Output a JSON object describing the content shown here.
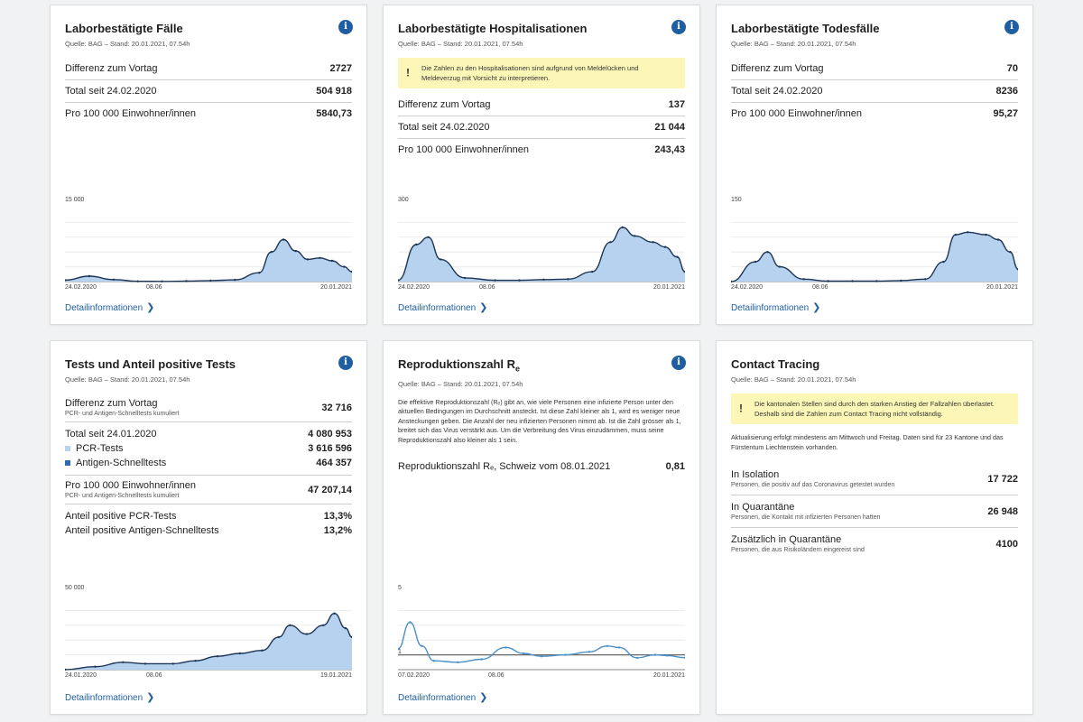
{
  "source_text": "Quelle: BAG – Stand: 20.01.2021, 07.54h",
  "detail_label": "Detailinformationen",
  "info_glyph": "i",
  "warn_glyph": "!",
  "accent": "#1f5fa1",
  "cards": {
    "faelle": {
      "title": "Laborbestätigte Fälle",
      "rows": [
        {
          "label": "Differenz zum Vortag",
          "value": "2727"
        },
        {
          "label": "Total seit 24.02.2020",
          "value": "504 918"
        },
        {
          "label": "Pro 100 000 Einwohner/innen",
          "value": "5840,73"
        }
      ],
      "y_max_label": "15 000",
      "x_labels": [
        "24.02.2020",
        "08.06",
        "20.01.2021"
      ]
    },
    "hosp": {
      "title": "Laborbestätigte Hospitalisationen",
      "warning": "Die Zahlen zu den Hospitalisationen sind aufgrund von Meldelücken und Meldeverzug mit Vorsicht zu interpretieren.",
      "rows": [
        {
          "label": "Differenz zum Vortag",
          "value": "137"
        },
        {
          "label": "Total seit 24.02.2020",
          "value": "21 044"
        },
        {
          "label": "Pro 100 000 Einwohner/innen",
          "value": "243,43"
        }
      ],
      "y_max_label": "300",
      "x_labels": [
        "24.02.2020",
        "08.06",
        "20.01.2021"
      ]
    },
    "tod": {
      "title": "Laborbestätigte Todesfälle",
      "rows": [
        {
          "label": "Differenz zum Vortag",
          "value": "70"
        },
        {
          "label": "Total seit 24.02.2020",
          "value": "8236"
        },
        {
          "label": "Pro 100 000 Einwohner/innen",
          "value": "95,27"
        }
      ],
      "y_max_label": "150",
      "x_labels": [
        "24.02.2020",
        "08.06",
        "20.01.2021"
      ]
    },
    "tests": {
      "title": "Tests und Anteil positive Tests",
      "diff_label": "Differenz zum Vortag",
      "diff_sub": "PCR- und Antigen-Schnelltests kumuliert",
      "diff_value": "32 716",
      "total_label": "Total seit 24.01.2020",
      "total_value": "4 080 953",
      "pcr_label": "PCR-Tests",
      "pcr_value": "3 616 596",
      "pcr_color": "#b7d2ee",
      "ag_label": "Antigen-Schnelltests",
      "ag_value": "464 357",
      "ag_color": "#2b6cb0",
      "per_label": "Pro 100 000 Einwohner/innen",
      "per_sub": "PCR- und Antigen-Schnelltests kumuliert",
      "per_value": "47 207,14",
      "pos_pcr_label": "Anteil positive PCR-Tests",
      "pos_pcr_value": "13,3%",
      "pos_ag_label": "Anteil positive Antigen-Schnelltests",
      "pos_ag_value": "13,2%",
      "y_max_label": "50 000",
      "x_labels": [
        "24.01.2020",
        "08.06",
        "19.01.2021"
      ]
    },
    "repro": {
      "title_main": "Reproduktionszahl R",
      "title_sub": "e",
      "paragraph": "Die effektive Reproduktionszahl (Rₑ) gibt an, wie viele Personen eine infizierte Person unter den aktuellen Bedingungen im Durchschnitt ansteckt. Ist diese Zahl kleiner als 1, wird es weniger neue Ansteckungen geben. Die Anzahl der neu infizierten Personen nimmt ab. Ist die Zahl grösser als 1, breitet sich das Virus verstärkt aus. Um die Verbreitung des Virus einzudämmen, muss seine Reproduktionszahl also kleiner als 1 sein.",
      "row_label": "Reproduktionszahl Rₑ, Schweiz vom 08.01.2021",
      "row_value": "0,81",
      "y_max_label": "5",
      "y_one_label": "1",
      "x_labels": [
        "07.02.2020",
        "08.06",
        "20.01.2021"
      ]
    },
    "contact": {
      "title": "Contact Tracing",
      "warning": "Die kantonalen Stellen sind durch den starken Anstieg der Fallzahlen überlastet. Deshalb sind die Zahlen zum Contact Tracing nicht vollständig.",
      "note": "Aktualisierung erfolgt mindestens am Mittwoch und Freitag. Daten sind für 23 Kantone und das Fürstentum Liechtenstein vorhanden.",
      "rows": [
        {
          "label": "In Isolation",
          "sub": "Personen, die positiv auf das Coronavirus getestet wurden",
          "value": "17 722"
        },
        {
          "label": "In Quarantäne",
          "sub": "Personen, die Kontakt mit infizierten Personen hatten",
          "value": "26 948"
        },
        {
          "label": "Zusätzlich in Quarantäne",
          "sub": "Personen, die aus Risikoländern eingereist sind",
          "value": "4100"
        }
      ]
    }
  },
  "chart_data": [
    {
      "type": "bar",
      "name": "Laborbestätigte Fälle",
      "xlabel": "",
      "ylabel": "",
      "ylim": [
        0,
        15000
      ],
      "x": [
        "2020-02-24",
        "2020-03-23",
        "2020-04-20",
        "2020-05-18",
        "2020-06-15",
        "2020-07-13",
        "2020-08-10",
        "2020-09-07",
        "2020-10-05",
        "2020-10-19",
        "2020-11-02",
        "2020-11-16",
        "2020-11-30",
        "2020-12-14",
        "2020-12-28",
        "2021-01-11",
        "2021-01-20"
      ],
      "values": [
        300,
        1100,
        400,
        60,
        30,
        100,
        200,
        350,
        1800,
        6000,
        8500,
        6200,
        4500,
        4800,
        4200,
        3000,
        2000
      ]
    },
    {
      "type": "bar",
      "name": "Laborbestätigte Hospitalisationen",
      "xlabel": "",
      "ylabel": "",
      "ylim": [
        0,
        300
      ],
      "x": [
        "2020-02-24",
        "2020-03-16",
        "2020-03-30",
        "2020-04-13",
        "2020-05-11",
        "2020-06-15",
        "2020-07-13",
        "2020-08-10",
        "2020-09-07",
        "2020-10-05",
        "2020-10-26",
        "2020-11-09",
        "2020-11-23",
        "2020-12-14",
        "2020-12-28",
        "2021-01-11",
        "2021-01-20"
      ],
      "values": [
        5,
        150,
        180,
        90,
        15,
        5,
        5,
        8,
        10,
        40,
        160,
        220,
        185,
        160,
        140,
        100,
        40
      ]
    },
    {
      "type": "bar",
      "name": "Laborbestätigte Todesfälle",
      "xlabel": "",
      "ylabel": "",
      "ylim": [
        0,
        150
      ],
      "x": [
        "2020-02-24",
        "2020-03-23",
        "2020-04-06",
        "2020-04-20",
        "2020-05-18",
        "2020-06-15",
        "2020-07-13",
        "2020-08-10",
        "2020-09-07",
        "2020-10-05",
        "2020-10-26",
        "2020-11-09",
        "2020-11-23",
        "2020-12-14",
        "2020-12-28",
        "2021-01-11",
        "2021-01-20"
      ],
      "values": [
        0,
        40,
        60,
        30,
        5,
        1,
        1,
        1,
        2,
        5,
        40,
        95,
        100,
        95,
        85,
        60,
        25
      ]
    },
    {
      "type": "bar",
      "name": "Tests und Anteil positive Tests",
      "xlabel": "",
      "ylabel": "",
      "ylim": [
        0,
        50000
      ],
      "x": [
        "2020-01-24",
        "2020-03-02",
        "2020-04-06",
        "2020-05-04",
        "2020-06-08",
        "2020-07-06",
        "2020-08-03",
        "2020-08-31",
        "2020-09-28",
        "2020-10-19",
        "2020-11-02",
        "2020-11-23",
        "2020-12-14",
        "2020-12-28",
        "2021-01-11",
        "2021-01-19"
      ],
      "values": [
        0,
        2000,
        5000,
        4000,
        4000,
        6000,
        9000,
        11000,
        13000,
        22000,
        30000,
        24000,
        30000,
        38000,
        28000,
        22000
      ]
    },
    {
      "type": "line",
      "name": "Reproduktionszahl Rₑ",
      "xlabel": "",
      "ylabel": "",
      "ylim": [
        0,
        5
      ],
      "x": [
        "2020-02-07",
        "2020-02-21",
        "2020-03-06",
        "2020-03-20",
        "2020-04-17",
        "2020-05-15",
        "2020-06-12",
        "2020-07-03",
        "2020-07-24",
        "2020-08-21",
        "2020-09-18",
        "2020-10-09",
        "2020-10-23",
        "2020-11-13",
        "2020-12-04",
        "2020-12-18",
        "2021-01-08"
      ],
      "values": [
        1.4,
        3.2,
        1.6,
        0.6,
        0.5,
        0.7,
        1.5,
        1.1,
        0.9,
        1.0,
        1.2,
        1.6,
        1.5,
        0.8,
        1.0,
        0.95,
        0.81
      ]
    }
  ]
}
